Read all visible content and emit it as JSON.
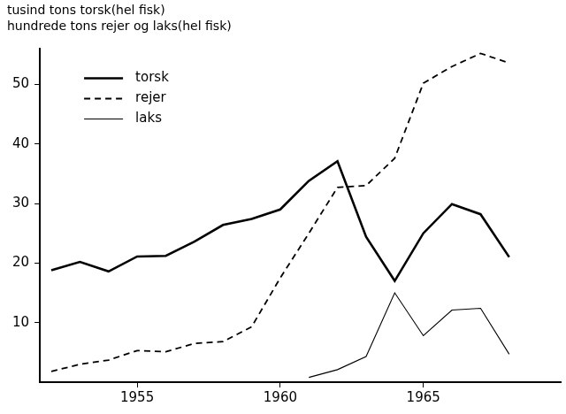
{
  "chart_data": {
    "type": "line",
    "ylabel": [
      "tusind tons torsk(hel fisk)",
      "hundrede tons rejer og laks(hel fisk)"
    ],
    "x": [
      1952,
      1953,
      1954,
      1955,
      1956,
      1957,
      1958,
      1959,
      1960,
      1961,
      1962,
      1963,
      1964,
      1965,
      1966,
      1967,
      1968
    ],
    "series": [
      {
        "name": "torsk",
        "color": "#000000",
        "line_style": "solid",
        "values": [
          18.8,
          20.2,
          18.6,
          21.1,
          21.2,
          23.6,
          26.4,
          27.4,
          29.0,
          33.8,
          37.1,
          24.4,
          17.0,
          25.0,
          29.9,
          28.2,
          21.0
        ]
      },
      {
        "name": "rejer",
        "color": "#000000",
        "line_style": "dashed",
        "values": [
          1.8,
          3.0,
          3.7,
          5.3,
          5.1,
          6.5,
          6.8,
          9.3,
          17.5,
          25.0,
          32.7,
          33.0,
          37.6,
          50.2,
          53.0,
          55.2,
          53.6
        ]
      },
      {
        "name": "laks",
        "color": "#000000",
        "line_style": "solid",
        "values": [
          null,
          null,
          null,
          null,
          null,
          null,
          null,
          null,
          null,
          0.8,
          2.1,
          4.3,
          15.0,
          7.8,
          12.1,
          12.4,
          4.7
        ]
      }
    ],
    "xlim": [
      1951.6,
      1969.8
    ],
    "xticks": [
      1955,
      1960,
      1965
    ],
    "ylim": [
      0,
      56
    ],
    "yticks": [
      10,
      20,
      30,
      40,
      50
    ],
    "grid": false,
    "legend": "upper left"
  }
}
